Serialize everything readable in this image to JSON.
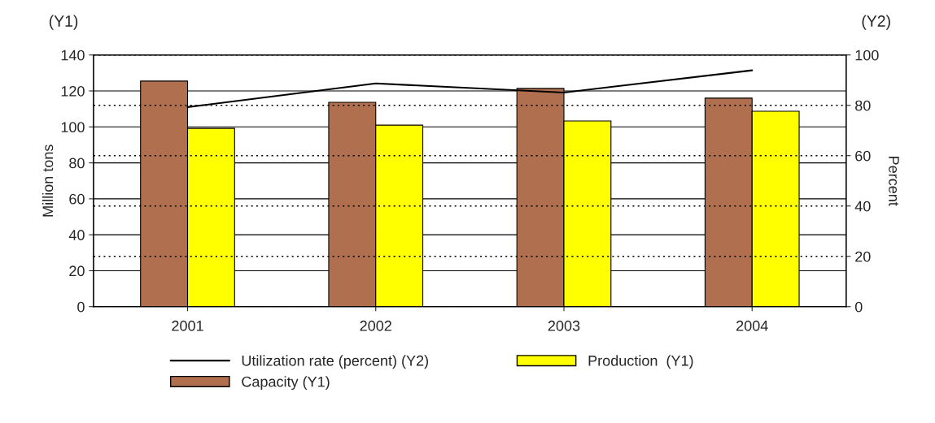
{
  "chart_data": {
    "type": "bar",
    "categories": [
      "2001",
      "2002",
      "2003",
      "2004"
    ],
    "series": [
      {
        "name": "Utilization rate (percent) (Y2)",
        "type": "line",
        "axis": "y2",
        "color": "#000000",
        "values": [
          79.3,
          88.7,
          85.1,
          93.9
        ]
      },
      {
        "name": "Capacity (Y1)",
        "color": "#b07050",
        "values": [
          125.5,
          113.7,
          121.4,
          116
        ]
      },
      {
        "name": "Production  (Y1)",
        "color": "#ffff00",
        "values": [
          99.2,
          101,
          103.3,
          108.7
        ]
      }
    ],
    "ylabel": "Million tons",
    "y2label": "Percent",
    "ylim": [
      0,
      140
    ],
    "yticks": [
      0,
      20,
      40,
      60,
      80,
      100,
      120,
      140
    ],
    "y2lim": [
      0,
      100
    ],
    "y2ticks": [
      0,
      20,
      40,
      60,
      80,
      100
    ],
    "annotations": [
      "(Y1)",
      "(Y2)"
    ],
    "grid": "y",
    "legend": "bottom",
    "marker": "none",
    "line_style": "solid"
  }
}
